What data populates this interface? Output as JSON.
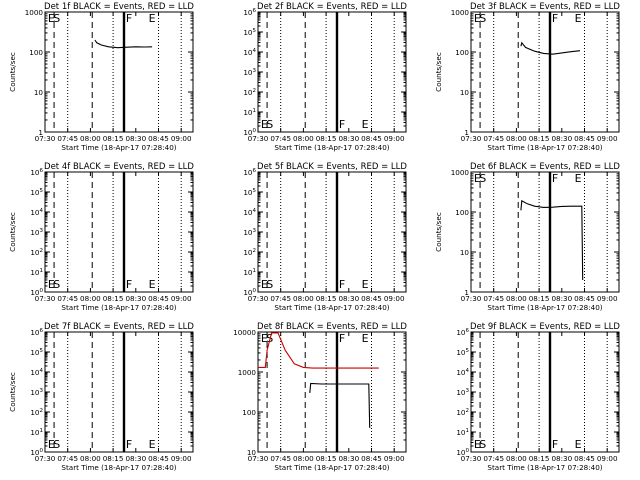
{
  "chart_data": [
    {
      "type": "line",
      "title": "Det 1f BLACK = Events, RED = LLD",
      "xlabel": "Start Time (18-Apr-17 07:28:40)",
      "ylabel": "Counts/sec",
      "yscale": "log",
      "ylim": [
        1,
        1000
      ],
      "ytick_style": "plain",
      "xticks": [
        "07:30",
        "07:45",
        "08:00",
        "08:15",
        "08:30",
        "08:45",
        "09:00"
      ],
      "flags": [
        "E",
        "S",
        "F",
        "E"
      ],
      "series": [
        {
          "color": "#000000",
          "points": [
            [
              8.05,
              200
            ],
            [
              8.07,
              170
            ],
            [
              8.12,
              150
            ],
            [
              8.2,
              135
            ],
            [
              8.3,
              128
            ],
            [
              8.4,
              132
            ],
            [
              8.5,
              135
            ],
            [
              8.6,
              133
            ],
            [
              8.68,
              135
            ]
          ]
        }
      ]
    },
    {
      "type": "line",
      "title": "Det 2f BLACK = Events, RED = LLD",
      "xlabel": "Start Time (18-Apr-17 07:28:40)",
      "ylabel": "",
      "yscale": "log",
      "ylim": [
        1,
        1000000
      ],
      "ytick_style": "exp",
      "xticks": [
        "07:30",
        "07:45",
        "08:00",
        "08:15",
        "08:30",
        "08:45",
        "09:00"
      ],
      "flags": [
        "E",
        "S",
        "F",
        "E"
      ],
      "series": []
    },
    {
      "type": "line",
      "title": "Det 3f BLACK = Events, RED = LLD",
      "xlabel": "Start Time (18-Apr-17 07:28:40)",
      "ylabel": "Counts/sec",
      "yscale": "log",
      "ylim": [
        1,
        1000
      ],
      "ytick_style": "plain",
      "xticks": [
        "07:30",
        "07:45",
        "08:00",
        "08:15",
        "08:30",
        "08:45",
        "09:00"
      ],
      "flags": [
        "E",
        "S",
        "F",
        "E"
      ],
      "series": [
        {
          "color": "#000000",
          "points": [
            [
              8.05,
              140
            ],
            [
              8.06,
              170
            ],
            [
              8.1,
              130
            ],
            [
              8.2,
              105
            ],
            [
              8.3,
              92
            ],
            [
              8.4,
              88
            ],
            [
              8.5,
              95
            ],
            [
              8.6,
              102
            ],
            [
              8.7,
              108
            ]
          ]
        }
      ]
    },
    {
      "type": "line",
      "title": "Det 4f BLACK = Events, RED = LLD",
      "xlabel": "Start Time (18-Apr-17 07:28:40)",
      "ylabel": "Counts/sec",
      "yscale": "log",
      "ylim": [
        1,
        1000000
      ],
      "ytick_style": "exp",
      "xticks": [
        "07:30",
        "07:45",
        "08:00",
        "08:15",
        "08:30",
        "08:45",
        "09:00"
      ],
      "flags": [
        "E",
        "S",
        "F",
        "E"
      ],
      "series": []
    },
    {
      "type": "line",
      "title": "Det 5f BLACK = Events, RED = LLD",
      "xlabel": "Start Time (18-Apr-17 07:28:40)",
      "ylabel": "",
      "yscale": "log",
      "ylim": [
        1,
        1000000
      ],
      "ytick_style": "exp",
      "xticks": [
        "07:30",
        "07:45",
        "08:00",
        "08:15",
        "08:30",
        "08:45",
        "09:00"
      ],
      "flags": [
        "E",
        "S",
        "F",
        "E"
      ],
      "series": []
    },
    {
      "type": "line",
      "title": "Det 6f BLACK = Events, RED = LLD",
      "xlabel": "Start Time (18-Apr-17 07:28:40)",
      "ylabel": "Counts/sec",
      "yscale": "log",
      "ylim": [
        1,
        1000
      ],
      "ytick_style": "plain",
      "xticks": [
        "07:30",
        "07:45",
        "08:00",
        "08:15",
        "08:30",
        "08:45",
        "09:00"
      ],
      "flags": [
        "E",
        "S",
        "F",
        "E"
      ],
      "series": [
        {
          "color": "#000000",
          "points": [
            [
              8.05,
              110
            ],
            [
              8.06,
              190
            ],
            [
              8.12,
              160
            ],
            [
              8.2,
              140
            ],
            [
              8.3,
              130
            ],
            [
              8.4,
              132
            ],
            [
              8.5,
              138
            ],
            [
              8.6,
              140
            ],
            [
              8.72,
              140
            ],
            [
              8.73,
              2
            ]
          ]
        }
      ]
    },
    {
      "type": "line",
      "title": "Det 7f BLACK = Events, RED = LLD",
      "xlabel": "Start Time (18-Apr-17 07:28:40)",
      "ylabel": "Counts/sec",
      "yscale": "log",
      "ylim": [
        1,
        1000000
      ],
      "ytick_style": "exp",
      "xticks": [
        "07:30",
        "07:45",
        "08:00",
        "08:15",
        "08:30",
        "08:45",
        "09:00"
      ],
      "flags": [
        "E",
        "S",
        "F",
        "E"
      ],
      "series": []
    },
    {
      "type": "line",
      "title": "Det 8f BLACK = Events, RED = LLD",
      "xlabel": "Start Time (18-Apr-17 07:28:40)",
      "ylabel": "",
      "yscale": "log",
      "ylim": [
        10,
        10000
      ],
      "ytick_style": "plain",
      "xticks": [
        "07:30",
        "07:45",
        "08:00",
        "08:15",
        "08:30",
        "08:45",
        "09:00"
      ],
      "flags": [
        "E",
        "S",
        "F",
        "E"
      ],
      "series": [
        {
          "color": "#cc0000",
          "points": [
            [
              7.5,
              1300
            ],
            [
              7.58,
              1300
            ],
            [
              7.6,
              3500
            ],
            [
              7.65,
              9500
            ],
            [
              7.72,
              9500
            ],
            [
              7.8,
              3500
            ],
            [
              7.9,
              1600
            ],
            [
              8.0,
              1300
            ],
            [
              8.1,
              1250
            ],
            [
              8.3,
              1250
            ],
            [
              8.5,
              1250
            ],
            [
              8.7,
              1250
            ],
            [
              8.83,
              1250
            ]
          ]
        },
        {
          "color": "#000000",
          "points": [
            [
              8.07,
              300
            ],
            [
              8.08,
              520
            ],
            [
              8.2,
              500
            ],
            [
              8.4,
              500
            ],
            [
              8.6,
              500
            ],
            [
              8.72,
              500
            ],
            [
              8.73,
              40
            ]
          ]
        }
      ]
    },
    {
      "type": "line",
      "title": "Det 9f BLACK = Events, RED = LLD",
      "xlabel": "Start Time (18-Apr-17 07:28:40)",
      "ylabel": "",
      "yscale": "log",
      "ylim": [
        1,
        1000000
      ],
      "ytick_style": "exp",
      "xticks": [
        "07:30",
        "07:45",
        "08:00",
        "08:15",
        "08:30",
        "08:45",
        "09:00"
      ],
      "flags": [
        "E",
        "S",
        "F",
        "E"
      ],
      "series": []
    }
  ]
}
